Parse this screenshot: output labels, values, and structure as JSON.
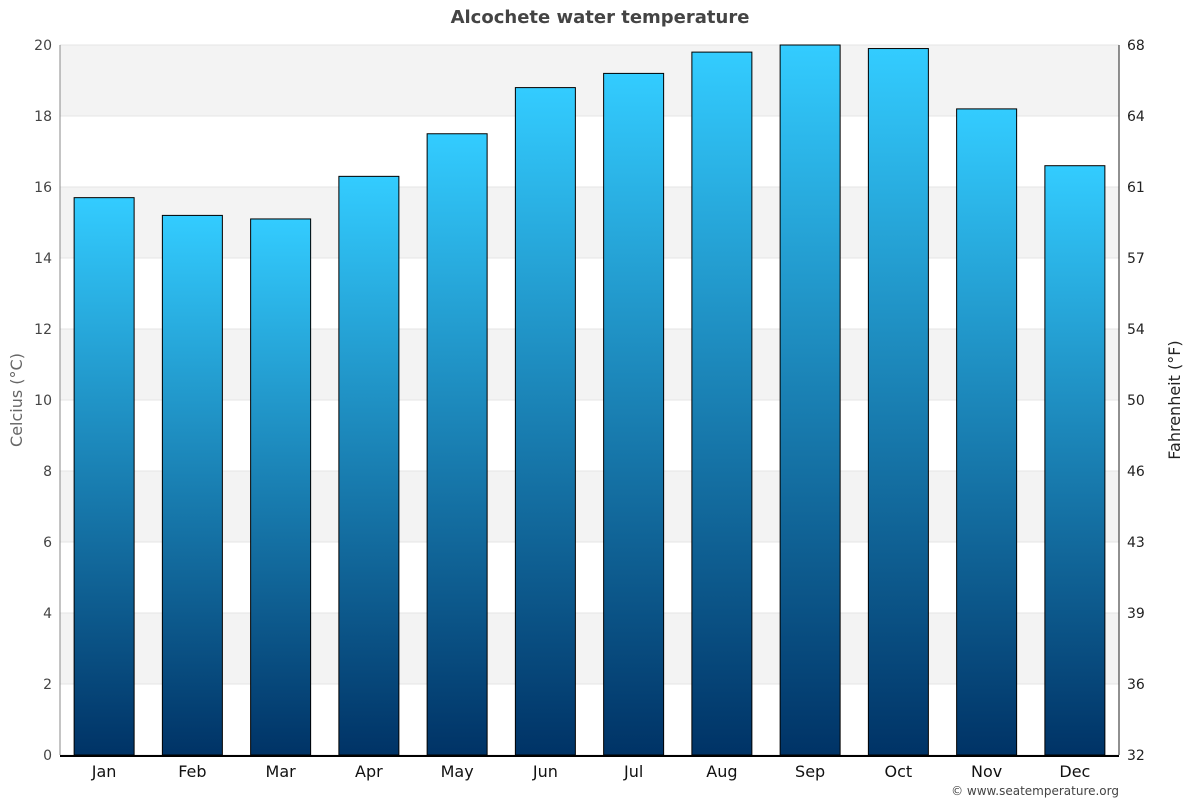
{
  "chart_data": {
    "type": "bar",
    "title": "Alcochete water temperature",
    "categories": [
      "Jan",
      "Feb",
      "Mar",
      "Apr",
      "May",
      "Jun",
      "Jul",
      "Aug",
      "Sep",
      "Oct",
      "Nov",
      "Dec"
    ],
    "values": [
      15.7,
      15.2,
      15.1,
      16.3,
      17.5,
      18.8,
      19.2,
      19.8,
      20.0,
      19.9,
      18.2,
      16.6
    ],
    "ylabel": "Celcius (°C)",
    "y2label": "Fahrenheit (°F)",
    "ylim": [
      0,
      20
    ],
    "yticks": [
      0,
      2,
      4,
      6,
      8,
      10,
      12,
      14,
      16,
      18,
      20
    ],
    "y2ticks": [
      32,
      36,
      39,
      43,
      46,
      50,
      54,
      57,
      61,
      64,
      68
    ],
    "grid": true,
    "colors": {
      "bar_top": "#33ccff",
      "bar_bottom": "#003366",
      "band": "#f3f3f3"
    }
  },
  "footer": {
    "credit": "© www.seatemperature.org"
  }
}
